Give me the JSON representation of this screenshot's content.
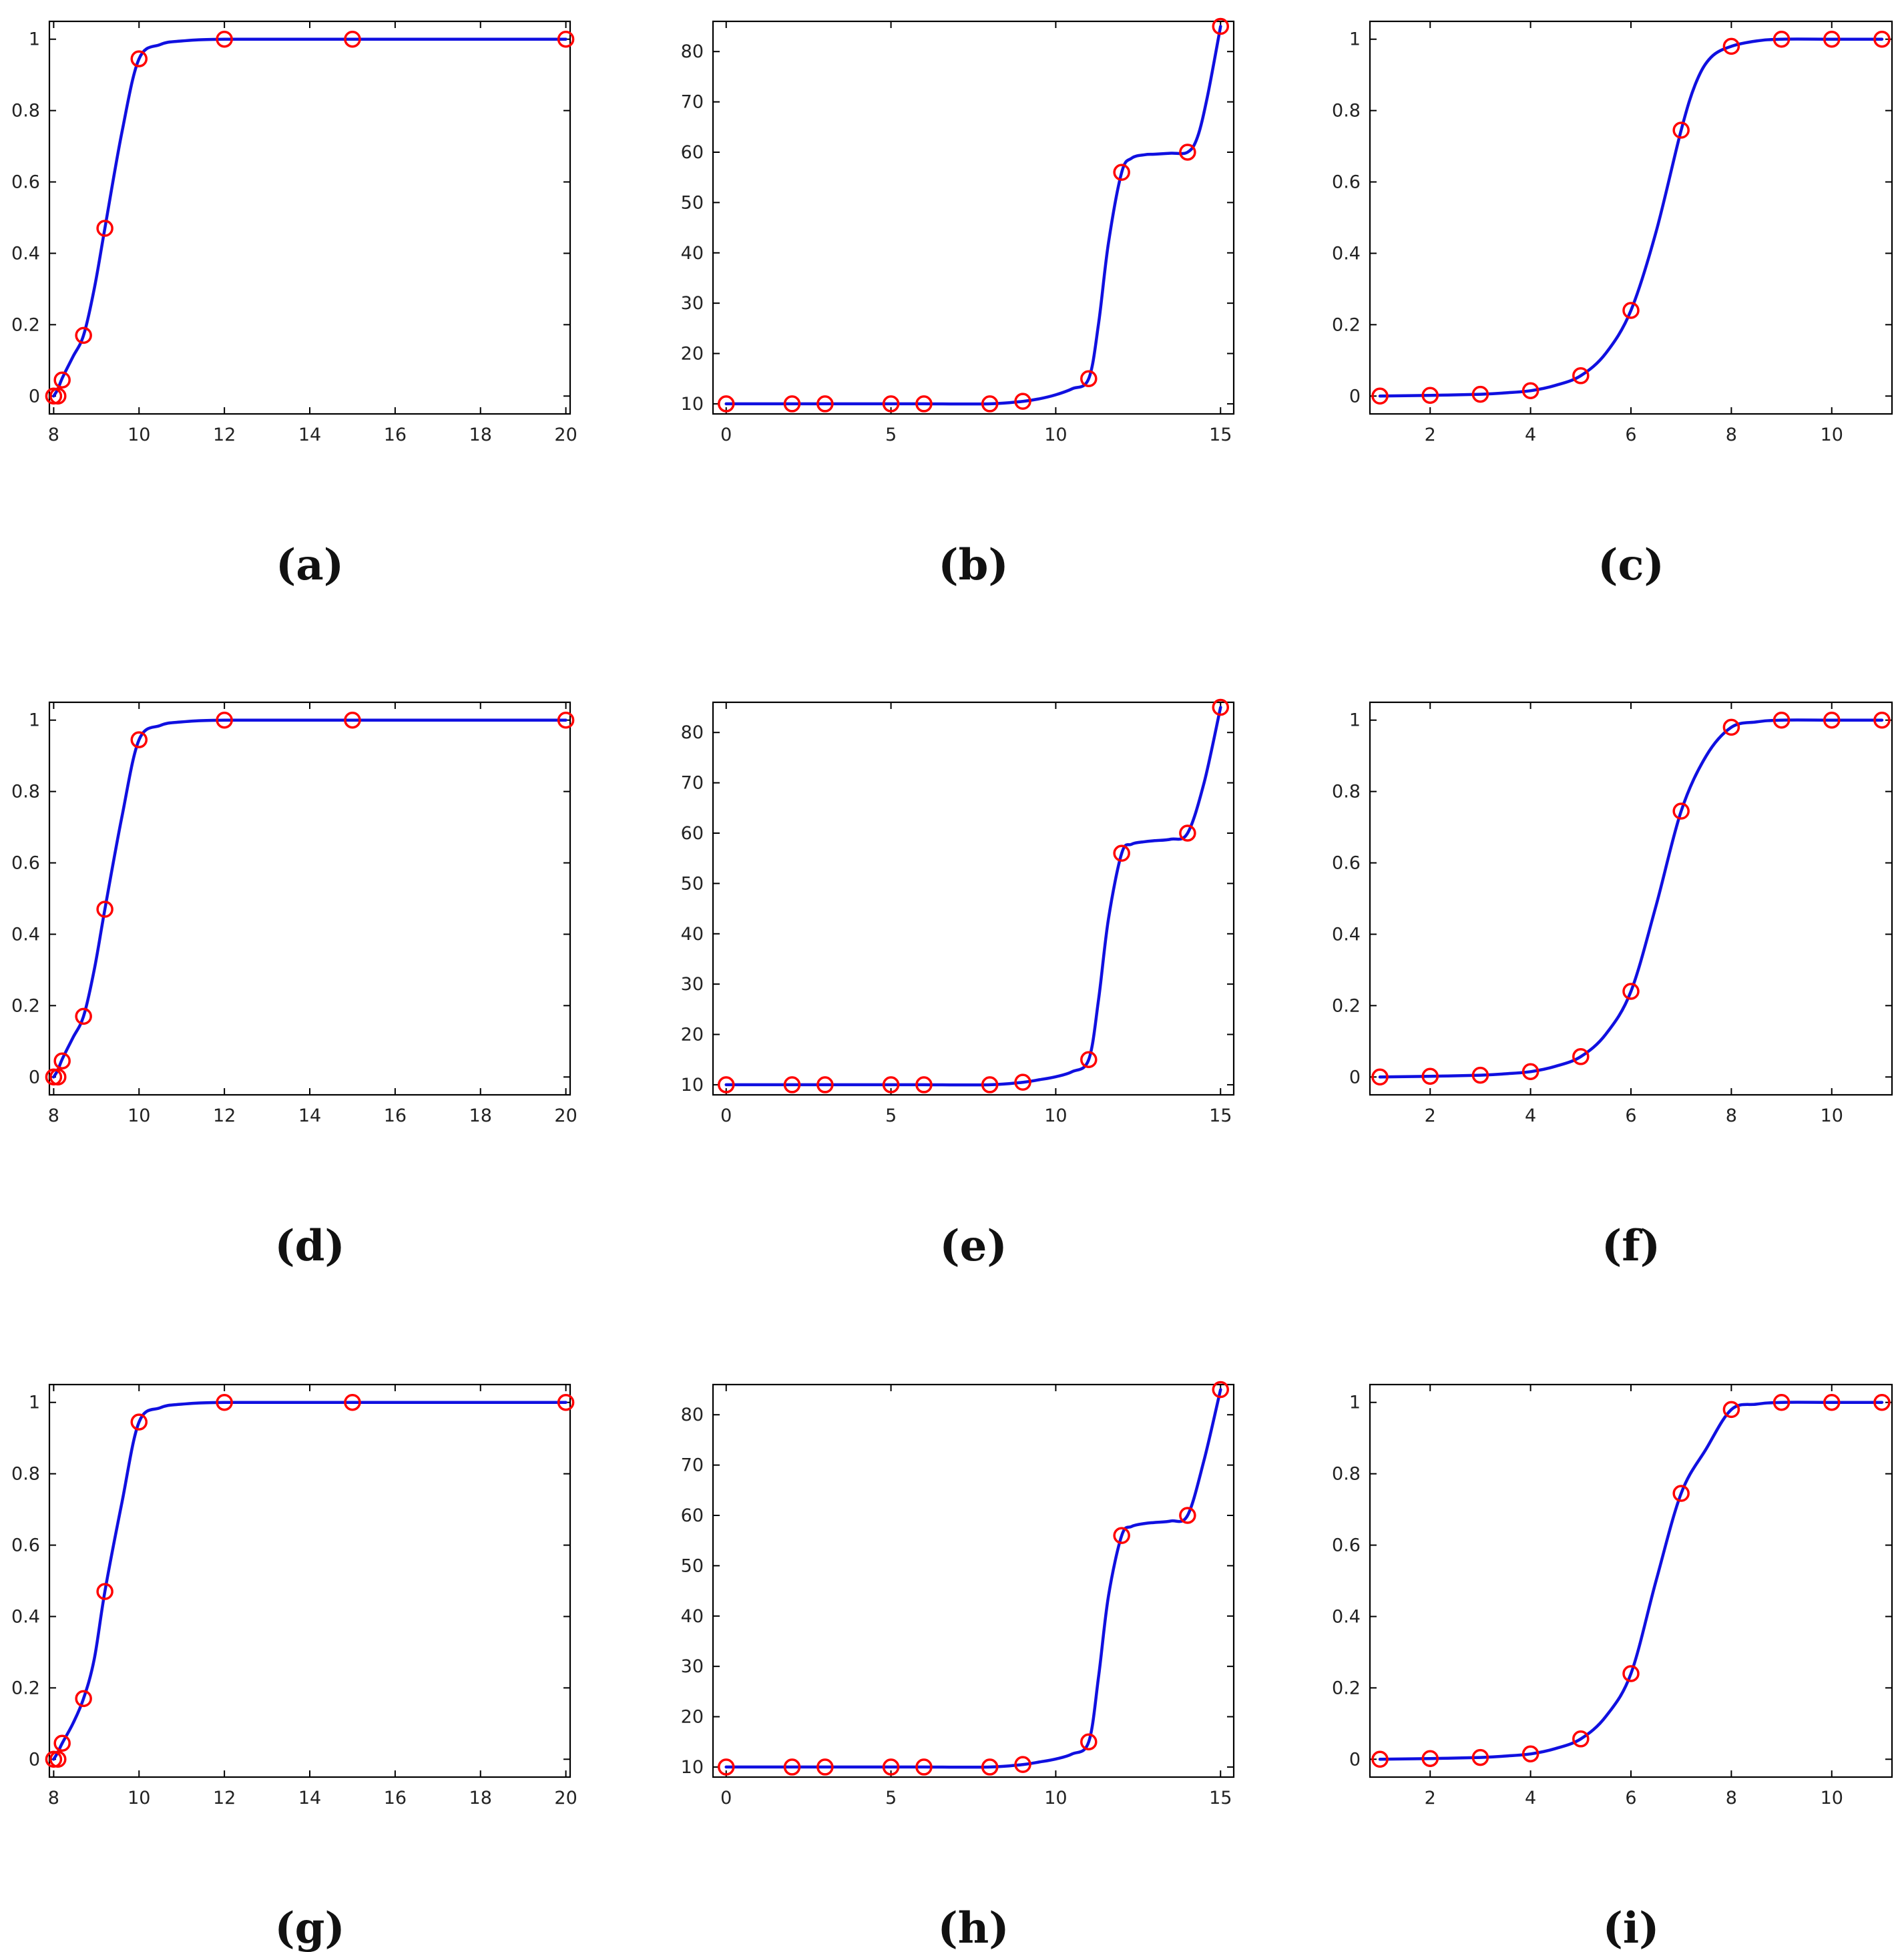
{
  "colors": {
    "curve": "#1010e0",
    "marker": "#ff0000",
    "axes": "#000000"
  },
  "chart_data": [
    {
      "panel": "a",
      "caption": "(a)",
      "type": "line",
      "xlim": [
        7.9,
        20.1
      ],
      "ylim": [
        -0.05,
        1.05
      ],
      "xticks": [
        8,
        10,
        12,
        14,
        16,
        18,
        20
      ],
      "yticks": [
        0,
        0.2,
        0.4,
        0.6,
        0.8,
        1
      ],
      "xtick_labels": [
        "8",
        "10",
        "12",
        "14",
        "16",
        "18",
        "20"
      ],
      "ytick_labels": [
        "0",
        "0.2",
        "0.4",
        "0.6",
        "0.8",
        "1"
      ],
      "points": {
        "x": [
          8,
          8.1,
          8.2,
          8.7,
          9.2,
          10,
          12,
          15,
          20
        ],
        "y": [
          0,
          0,
          0.045,
          0.17,
          0.47,
          0.945,
          1,
          1,
          1
        ]
      },
      "curve": {
        "x": [
          8,
          8.1,
          8.2,
          8.45,
          8.7,
          8.95,
          9.2,
          9.6,
          10,
          10.5,
          11,
          12,
          15,
          20
        ],
        "y": [
          0,
          0.02,
          0.05,
          0.11,
          0.17,
          0.3,
          0.47,
          0.74,
          0.945,
          0.985,
          0.995,
          1,
          1,
          1
        ]
      }
    },
    {
      "panel": "b",
      "caption": "(b)",
      "type": "line",
      "xlim": [
        -0.4,
        15.4
      ],
      "ylim": [
        8,
        86
      ],
      "xticks": [
        0,
        5,
        10,
        15
      ],
      "yticks": [
        10,
        20,
        30,
        40,
        50,
        60,
        70,
        80
      ],
      "xtick_labels": [
        "0",
        "5",
        "10",
        "15"
      ],
      "ytick_labels": [
        "10",
        "20",
        "30",
        "40",
        "50",
        "60",
        "70",
        "80"
      ],
      "points": {
        "x": [
          0,
          2,
          3,
          5,
          6,
          8,
          9,
          11,
          12,
          14,
          15
        ],
        "y": [
          10,
          10,
          10,
          10,
          10,
          10,
          10.5,
          15,
          56,
          60,
          85
        ]
      },
      "curve": {
        "x": [
          0,
          2,
          3,
          5,
          6,
          8,
          9,
          9.5,
          10,
          10.5,
          11,
          11.3,
          11.6,
          12,
          12.3,
          12.7,
          13,
          13.5,
          14,
          14.3,
          14.6,
          15
        ],
        "y": [
          10,
          10,
          10,
          10,
          10,
          10,
          10.5,
          11,
          11.8,
          13,
          15,
          26,
          42,
          56,
          58.8,
          59.5,
          59.6,
          59.8,
          60,
          63,
          71,
          85
        ]
      }
    },
    {
      "panel": "c",
      "caption": "(c)",
      "type": "line",
      "xlim": [
        0.8,
        11.2
      ],
      "ylim": [
        -0.05,
        1.05
      ],
      "xticks": [
        2,
        4,
        6,
        8,
        10
      ],
      "yticks": [
        0,
        0.2,
        0.4,
        0.6,
        0.8,
        1
      ],
      "xtick_labels": [
        "2",
        "4",
        "6",
        "8",
        "10"
      ],
      "ytick_labels": [
        "0",
        "0.2",
        "0.4",
        "0.6",
        "0.8",
        "1"
      ],
      "points": {
        "x": [
          1,
          2,
          3,
          4,
          5,
          6,
          7,
          8,
          9,
          10,
          11
        ],
        "y": [
          0,
          0.002,
          0.005,
          0.015,
          0.057,
          0.24,
          0.745,
          0.98,
          1,
          1,
          1
        ]
      },
      "curve": {
        "x": [
          1,
          2,
          3,
          3.5,
          4,
          4.5,
          5,
          5.5,
          6,
          6.5,
          7,
          7.3,
          7.6,
          8,
          8.5,
          9,
          10,
          11
        ],
        "y": [
          0,
          0.002,
          0.005,
          0.009,
          0.015,
          0.03,
          0.057,
          0.12,
          0.24,
          0.46,
          0.745,
          0.88,
          0.95,
          0.98,
          0.995,
          1,
          1,
          1
        ]
      }
    },
    {
      "panel": "d",
      "caption": "(d)",
      "type": "line",
      "xlim": [
        7.9,
        20.1
      ],
      "ylim": [
        -0.05,
        1.05
      ],
      "xticks": [
        8,
        10,
        12,
        14,
        16,
        18,
        20
      ],
      "yticks": [
        0,
        0.2,
        0.4,
        0.6,
        0.8,
        1
      ],
      "xtick_labels": [
        "8",
        "10",
        "12",
        "14",
        "16",
        "18",
        "20"
      ],
      "ytick_labels": [
        "0",
        "0.2",
        "0.4",
        "0.6",
        "0.8",
        "1"
      ],
      "points": {
        "x": [
          8,
          8.1,
          8.2,
          8.7,
          9.2,
          10,
          12,
          15,
          20
        ],
        "y": [
          0,
          0,
          0.045,
          0.17,
          0.47,
          0.945,
          1,
          1,
          1
        ]
      },
      "curve": {
        "x": [
          8,
          8.1,
          8.2,
          8.45,
          8.7,
          8.95,
          9.2,
          9.6,
          10,
          10.5,
          11,
          12,
          15,
          20
        ],
        "y": [
          0,
          0.02,
          0.05,
          0.11,
          0.17,
          0.3,
          0.47,
          0.73,
          0.945,
          0.985,
          0.995,
          1,
          1,
          1
        ]
      }
    },
    {
      "panel": "e",
      "caption": "(e)",
      "type": "line",
      "xlim": [
        -0.4,
        15.4
      ],
      "ylim": [
        8,
        86
      ],
      "xticks": [
        0,
        5,
        10,
        15
      ],
      "yticks": [
        10,
        20,
        30,
        40,
        50,
        60,
        70,
        80
      ],
      "xtick_labels": [
        "0",
        "5",
        "10",
        "15"
      ],
      "ytick_labels": [
        "10",
        "20",
        "30",
        "40",
        "50",
        "60",
        "70",
        "80"
      ],
      "points": {
        "x": [
          0,
          2,
          3,
          5,
          6,
          8,
          9,
          11,
          12,
          14,
          15
        ],
        "y": [
          10,
          10,
          10,
          10,
          10,
          10,
          10.5,
          15,
          56,
          60,
          85
        ]
      },
      "curve": {
        "x": [
          0,
          2,
          3,
          5,
          6,
          8,
          9,
          9.5,
          10,
          10.5,
          11,
          11.3,
          11.6,
          12,
          12.3,
          12.7,
          13,
          13.5,
          14,
          14.5,
          15
        ],
        "y": [
          10,
          10,
          10,
          10,
          10,
          10,
          10.5,
          11,
          11.6,
          12.6,
          15,
          27,
          43,
          56,
          57.8,
          58.3,
          58.5,
          58.8,
          60,
          70,
          85
        ]
      }
    },
    {
      "panel": "f",
      "caption": "(f)",
      "type": "line",
      "xlim": [
        0.8,
        11.2
      ],
      "ylim": [
        -0.05,
        1.05
      ],
      "xticks": [
        2,
        4,
        6,
        8,
        10
      ],
      "yticks": [
        0,
        0.2,
        0.4,
        0.6,
        0.8,
        1
      ],
      "xtick_labels": [
        "2",
        "4",
        "6",
        "8",
        "10"
      ],
      "ytick_labels": [
        "0",
        "0.2",
        "0.4",
        "0.6",
        "0.8",
        "1"
      ],
      "points": {
        "x": [
          1,
          2,
          3,
          4,
          5,
          6,
          7,
          8,
          9,
          10,
          11
        ],
        "y": [
          0,
          0.002,
          0.005,
          0.015,
          0.057,
          0.24,
          0.745,
          0.98,
          1,
          1,
          1
        ]
      },
      "curve": {
        "x": [
          1,
          2,
          3,
          3.5,
          4,
          4.5,
          5,
          5.5,
          6,
          6.5,
          7,
          7.5,
          8,
          8.5,
          9,
          10,
          11
        ],
        "y": [
          0,
          0.002,
          0.005,
          0.009,
          0.015,
          0.03,
          0.057,
          0.12,
          0.24,
          0.48,
          0.745,
          0.9,
          0.98,
          0.995,
          1,
          1,
          1
        ]
      }
    },
    {
      "panel": "g",
      "caption": "(g)",
      "type": "line",
      "xlim": [
        7.9,
        20.1
      ],
      "ylim": [
        -0.05,
        1.05
      ],
      "xticks": [
        8,
        10,
        12,
        14,
        16,
        18,
        20
      ],
      "yticks": [
        0,
        0.2,
        0.4,
        0.6,
        0.8,
        1
      ],
      "xtick_labels": [
        "8",
        "10",
        "12",
        "14",
        "16",
        "18",
        "20"
      ],
      "ytick_labels": [
        "0",
        "0.2",
        "0.4",
        "0.6",
        "0.8",
        "1"
      ],
      "points": {
        "x": [
          8,
          8.1,
          8.2,
          8.7,
          9.2,
          10,
          12,
          15,
          20
        ],
        "y": [
          0,
          0,
          0.045,
          0.17,
          0.47,
          0.945,
          1,
          1,
          1
        ]
      },
      "curve": {
        "x": [
          8,
          8.1,
          8.2,
          8.45,
          8.7,
          8.95,
          9.2,
          9.6,
          10,
          10.5,
          11,
          12,
          15,
          20
        ],
        "y": [
          0,
          0.02,
          0.045,
          0.1,
          0.17,
          0.28,
          0.47,
          0.72,
          0.945,
          0.985,
          0.995,
          1,
          1,
          1
        ]
      }
    },
    {
      "panel": "h",
      "caption": "(h)",
      "type": "line",
      "xlim": [
        -0.4,
        15.4
      ],
      "ylim": [
        8,
        86
      ],
      "xticks": [
        0,
        5,
        10,
        15
      ],
      "yticks": [
        10,
        20,
        30,
        40,
        50,
        60,
        70,
        80
      ],
      "xtick_labels": [
        "0",
        "5",
        "10",
        "15"
      ],
      "ytick_labels": [
        "10",
        "20",
        "30",
        "40",
        "50",
        "60",
        "70",
        "80"
      ],
      "points": {
        "x": [
          0,
          2,
          3,
          5,
          6,
          8,
          9,
          11,
          12,
          14,
          15
        ],
        "y": [
          10,
          10,
          10,
          10,
          10,
          10,
          10.5,
          15,
          56,
          60,
          85
        ]
      },
      "curve": {
        "x": [
          0,
          2,
          3,
          5,
          6,
          8,
          9,
          9.5,
          10,
          10.5,
          11,
          11.3,
          11.6,
          12,
          12.3,
          12.7,
          13,
          13.5,
          14,
          14.5,
          15
        ],
        "y": [
          10,
          10,
          10,
          10,
          10,
          10,
          10.5,
          11,
          11.6,
          12.6,
          15,
          28,
          44,
          56,
          57.8,
          58.4,
          58.6,
          58.9,
          60,
          71,
          85
        ]
      }
    },
    {
      "panel": "i",
      "caption": "(i)",
      "type": "line",
      "xlim": [
        0.8,
        11.2
      ],
      "ylim": [
        -0.05,
        1.05
      ],
      "xticks": [
        2,
        4,
        6,
        8,
        10
      ],
      "yticks": [
        0,
        0.2,
        0.4,
        0.6,
        0.8,
        1
      ],
      "xtick_labels": [
        "2",
        "4",
        "6",
        "8",
        "10"
      ],
      "ytick_labels": [
        "0",
        "0.2",
        "0.4",
        "0.6",
        "0.8",
        "1"
      ],
      "points": {
        "x": [
          1,
          2,
          3,
          4,
          5,
          6,
          7,
          8,
          9,
          10,
          11
        ],
        "y": [
          0,
          0.002,
          0.005,
          0.015,
          0.057,
          0.24,
          0.745,
          0.98,
          1,
          1,
          1
        ]
      },
      "curve": {
        "x": [
          1,
          2,
          3,
          3.5,
          4,
          4.5,
          5,
          5.5,
          6,
          6.5,
          7,
          7.5,
          8,
          8.5,
          9,
          10,
          11
        ],
        "y": [
          0,
          0.002,
          0.005,
          0.009,
          0.015,
          0.03,
          0.057,
          0.12,
          0.24,
          0.5,
          0.745,
          0.87,
          0.98,
          0.995,
          1,
          1,
          1
        ]
      }
    }
  ]
}
